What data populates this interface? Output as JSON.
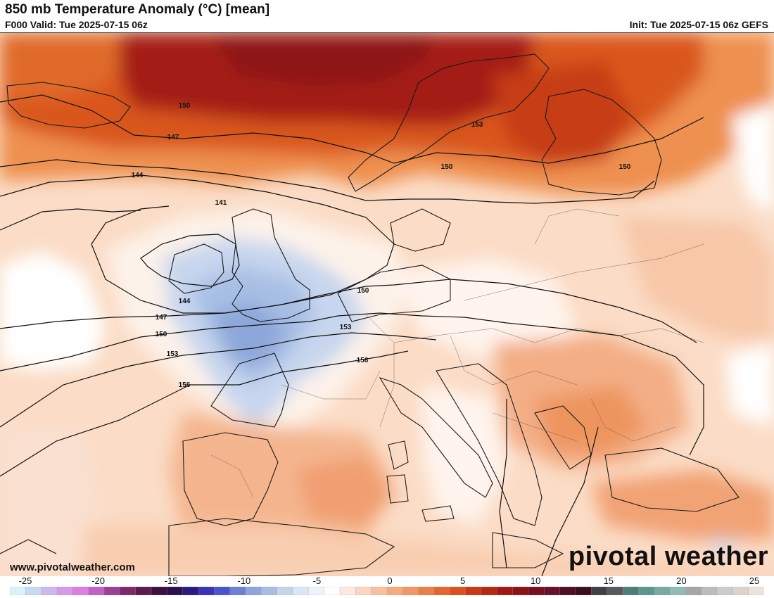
{
  "header": {
    "title": "850 mb Temperature Anomaly (°C) [mean]",
    "valid": "F000 Valid: Tue 2025-07-15 06z",
    "init": "Init: Tue 2025-07-15 06z GEFS"
  },
  "footer": {
    "website": "www.pivotalweather.com",
    "brand": "pivotal weather"
  },
  "colorbar": {
    "ticks": [
      "-25",
      "-20",
      "-15",
      "-10",
      "-5",
      "0",
      "5",
      "10",
      "15",
      "20",
      "25"
    ],
    "range": [
      -25,
      25
    ],
    "colors": [
      "#d8f4fb",
      "#c9d9f2",
      "#cdb9ec",
      "#d59be6",
      "#db7fe0",
      "#c460c6",
      "#9c4095",
      "#7c2a6a",
      "#5f1b4e",
      "#3c1240",
      "#2a1050",
      "#2b1a80",
      "#3a32b8",
      "#4a55cc",
      "#6a82d4",
      "#8ea4dc",
      "#a9bde4",
      "#c3d4ec",
      "#dbe6f4",
      "#eef3fa",
      "#ffffff",
      "#fde9dd",
      "#fbd5bd",
      "#f8c09f",
      "#f5aa80",
      "#f19664",
      "#ec7f47",
      "#e5672d",
      "#d9511c",
      "#c83a15",
      "#b52a12",
      "#9f1a12",
      "#8c1318",
      "#7a0f22",
      "#66102a",
      "#4f0f24",
      "#3a0f1e",
      "#404048",
      "#585860",
      "#4c7f78",
      "#5e968e",
      "#76aaa2",
      "#8fbcb4",
      "#a6a6a6",
      "#bcbcbc",
      "#cccccc",
      "#dcd4cc",
      "#ece4dc"
    ]
  },
  "map": {
    "contour_labels": [
      "150",
      "147",
      "144",
      "141",
      "153",
      "150",
      "150",
      "150",
      "144",
      "147",
      "150",
      "153",
      "156",
      "153",
      "156"
    ]
  }
}
